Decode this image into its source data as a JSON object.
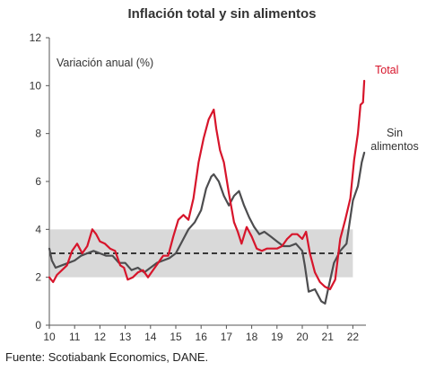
{
  "source": "Fuente: Scotiabank Economics, DANE.",
  "chart_data": {
    "type": "line",
    "title": "Inflación total y sin alimentos",
    "ylabel": "Variación anual (%)",
    "xlabel": "",
    "xlim": [
      2010.0,
      2022.5
    ],
    "ylim": [
      0,
      12
    ],
    "yticks": [
      "0",
      "2",
      "4",
      "6",
      "8",
      "10",
      "12"
    ],
    "xticks": [
      "10",
      "11",
      "12",
      "13",
      "14",
      "15",
      "16",
      "17",
      "18",
      "19",
      "20",
      "21",
      "22"
    ],
    "grid": false,
    "target_band": {
      "low": 2,
      "high": 4,
      "color": "#d9d9d9"
    },
    "target_line": {
      "value": 3,
      "style": "dashed"
    },
    "series": [
      {
        "name": "Total",
        "color": "#d7152b",
        "x": [
          2010.0,
          2010.15,
          2010.3,
          2010.5,
          2010.7,
          2010.9,
          2011.1,
          2011.3,
          2011.5,
          2011.7,
          2011.85,
          2012.0,
          2012.2,
          2012.4,
          2012.6,
          2012.8,
          2012.95,
          2013.1,
          2013.3,
          2013.5,
          2013.7,
          2013.9,
          2014.1,
          2014.3,
          2014.5,
          2014.7,
          2014.9,
          2015.1,
          2015.3,
          2015.5,
          2015.7,
          2015.9,
          2016.1,
          2016.3,
          2016.5,
          2016.6,
          2016.75,
          2016.9,
          2017.1,
          2017.3,
          2017.45,
          2017.6,
          2017.8,
          2018.0,
          2018.2,
          2018.4,
          2018.6,
          2018.8,
          2019.0,
          2019.2,
          2019.4,
          2019.6,
          2019.8,
          2020.0,
          2020.15,
          2020.3,
          2020.5,
          2020.7,
          2020.9,
          2021.1,
          2021.3,
          2021.5,
          2021.7,
          2021.9,
          2022.05,
          2022.2,
          2022.3,
          2022.4,
          2022.45
        ],
        "values": [
          2.0,
          1.8,
          2.1,
          2.3,
          2.5,
          3.1,
          3.4,
          3.0,
          3.3,
          4.0,
          3.8,
          3.5,
          3.4,
          3.2,
          3.1,
          2.5,
          2.4,
          1.9,
          2.0,
          2.2,
          2.3,
          2.0,
          2.3,
          2.6,
          2.9,
          2.9,
          3.7,
          4.4,
          4.6,
          4.4,
          5.3,
          6.8,
          7.8,
          8.6,
          9.0,
          8.2,
          7.3,
          6.8,
          5.5,
          4.3,
          3.9,
          3.4,
          4.1,
          3.7,
          3.2,
          3.1,
          3.2,
          3.2,
          3.2,
          3.3,
          3.6,
          3.8,
          3.8,
          3.6,
          3.9,
          3.0,
          2.2,
          1.8,
          1.6,
          1.5,
          1.9,
          3.6,
          4.4,
          5.3,
          6.9,
          8.0,
          9.2,
          9.3,
          10.2
        ]
      },
      {
        "name": "Sin alimentos",
        "color": "#4d4d4f",
        "x": [
          2010.0,
          2010.1,
          2010.25,
          2010.5,
          2010.75,
          2011.0,
          2011.25,
          2011.5,
          2011.75,
          2012.0,
          2012.25,
          2012.5,
          2012.75,
          2013.0,
          2013.25,
          2013.5,
          2013.75,
          2014.0,
          2014.25,
          2014.5,
          2014.75,
          2015.0,
          2015.25,
          2015.5,
          2015.75,
          2016.0,
          2016.2,
          2016.4,
          2016.5,
          2016.7,
          2016.9,
          2017.1,
          2017.3,
          2017.5,
          2017.7,
          2017.9,
          2018.1,
          2018.3,
          2018.5,
          2018.75,
          2019.0,
          2019.25,
          2019.5,
          2019.75,
          2020.0,
          2020.1,
          2020.25,
          2020.5,
          2020.75,
          2020.9,
          2021.0,
          2021.25,
          2021.5,
          2021.75,
          2022.0,
          2022.2,
          2022.35,
          2022.45
        ],
        "values": [
          3.2,
          2.7,
          2.4,
          2.5,
          2.6,
          2.7,
          2.9,
          3.0,
          3.1,
          3.0,
          2.9,
          2.9,
          2.6,
          2.6,
          2.3,
          2.4,
          2.2,
          2.4,
          2.6,
          2.7,
          2.8,
          3.0,
          3.5,
          4.0,
          4.3,
          4.8,
          5.7,
          6.2,
          6.3,
          6.0,
          5.4,
          5.0,
          5.4,
          5.6,
          5.0,
          4.5,
          4.1,
          3.8,
          3.9,
          3.7,
          3.5,
          3.3,
          3.3,
          3.4,
          3.1,
          2.5,
          1.4,
          1.5,
          1.0,
          0.9,
          1.4,
          2.6,
          3.1,
          3.4,
          5.2,
          5.8,
          6.8,
          7.2
        ]
      }
    ],
    "legend": [
      {
        "label": "Total",
        "color": "#d7152b"
      },
      {
        "label": "Sin alimentos",
        "label_lines": [
          "Sin",
          "alimentos"
        ],
        "color": "#4d4d4f"
      }
    ]
  }
}
